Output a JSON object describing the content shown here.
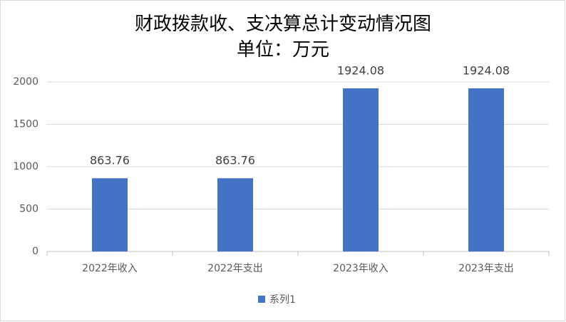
{
  "chart_data": {
    "type": "bar",
    "title": "财政拨款收、支决算总计变动情况图",
    "subtitle": "单位：万元",
    "categories": [
      "2022年收入",
      "2022年支出",
      "2023年收入",
      "2023年支出"
    ],
    "series": [
      {
        "name": "系列1",
        "color": "#4472c4",
        "values": [
          863.76,
          863.76,
          1924.08,
          1924.08
        ]
      }
    ],
    "ylim": [
      0,
      2000
    ],
    "yticks": [
      0,
      500,
      1000,
      1500,
      2000
    ],
    "grid": true,
    "legend": "bottom"
  }
}
